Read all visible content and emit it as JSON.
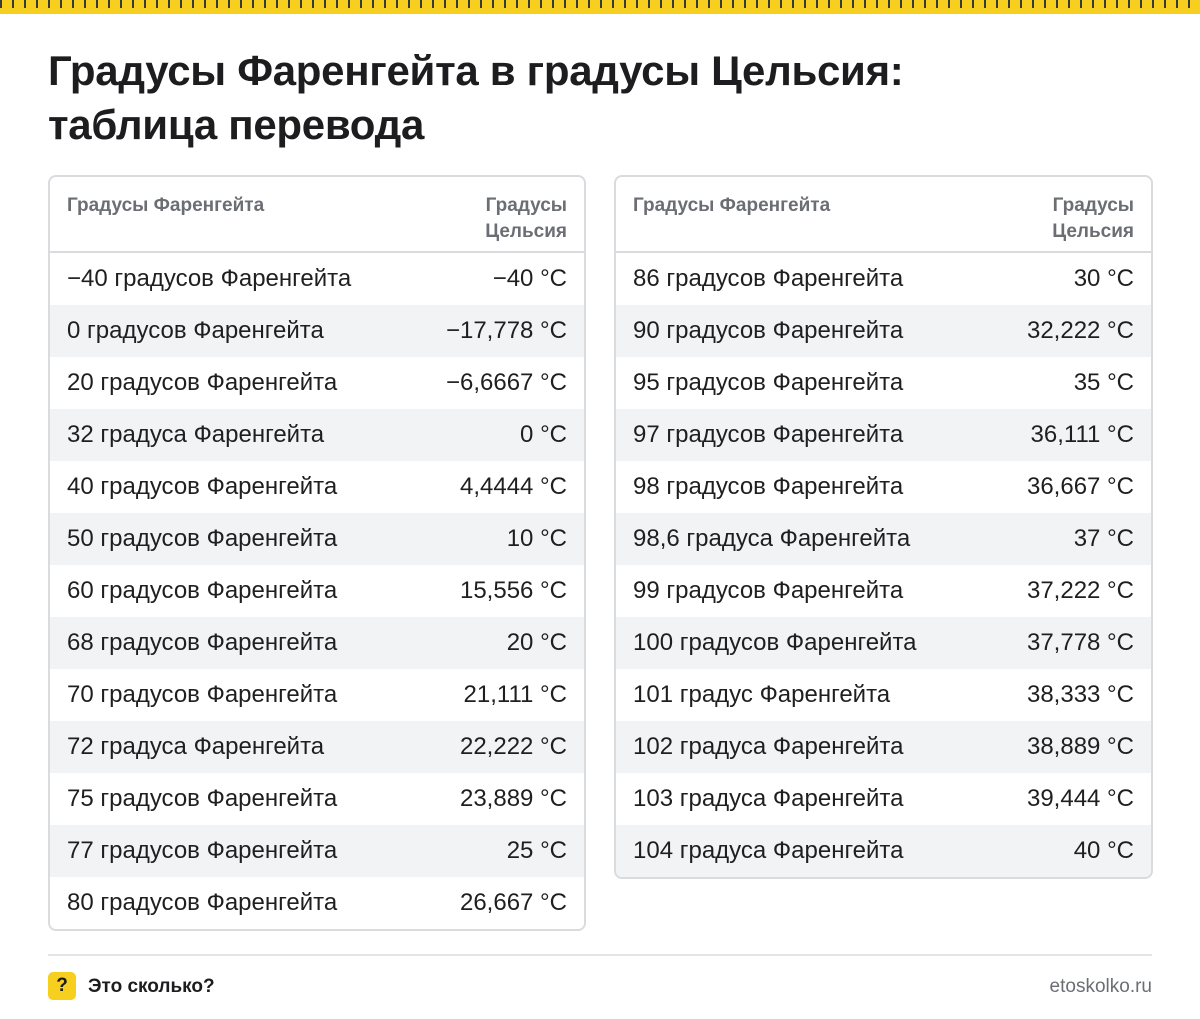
{
  "title": {
    "line1": "Градусы Фаренгейта в градусы Цельсия:",
    "line2": "таблица перевода"
  },
  "colors": {
    "accent": "#f7cf1e",
    "border": "#d9dbde",
    "stripe": "#f2f3f5"
  },
  "table_left": {
    "header": {
      "col1": "Градусы Фаренгейта",
      "col2_line1": "Градусы",
      "col2_line2": "Цельсия"
    },
    "rows": [
      {
        "f": "−40 градусов Фаренгейта",
        "c": "−40 °C"
      },
      {
        "f": "0 градусов Фаренгейта",
        "c": "−17,778 °C"
      },
      {
        "f": "20 градусов Фаренгейта",
        "c": "−6,6667 °C"
      },
      {
        "f": "32 градуса Фаренгейта",
        "c": "0 °C"
      },
      {
        "f": "40 градусов Фаренгейта",
        "c": "4,4444 °C"
      },
      {
        "f": "50 градусов Фаренгейта",
        "c": "10 °C"
      },
      {
        "f": "60 градусов Фаренгейта",
        "c": "15,556 °C"
      },
      {
        "f": "68 градусов Фаренгейта",
        "c": "20 °C"
      },
      {
        "f": "70 градусов Фаренгейта",
        "c": "21,111 °C"
      },
      {
        "f": "72 градуса Фаренгейта",
        "c": "22,222 °C"
      },
      {
        "f": "75 градусов Фаренгейта",
        "c": "23,889 °C"
      },
      {
        "f": "77 градусов Фаренгейта",
        "c": "25 °C"
      },
      {
        "f": "80 градусов Фаренгейта",
        "c": "26,667 °C"
      }
    ]
  },
  "table_right": {
    "header": {
      "col1": "Градусы Фаренгейта",
      "col2_line1": "Градусы",
      "col2_line2": "Цельсия"
    },
    "rows": [
      {
        "f": "86 градусов Фаренгейта",
        "c": "30 °C"
      },
      {
        "f": "90 градусов Фаренгейта",
        "c": "32,222 °C"
      },
      {
        "f": "95 градусов Фаренгейта",
        "c": "35 °C"
      },
      {
        "f": "97 градусов Фаренгейта",
        "c": "36,111 °C"
      },
      {
        "f": "98 градусов Фаренгейта",
        "c": "36,667 °C"
      },
      {
        "f": "98,6 градуса Фаренгейта",
        "c": "37 °C"
      },
      {
        "f": "99 градусов Фаренгейта",
        "c": "37,222 °C"
      },
      {
        "f": "100 градусов Фаренгейта",
        "c": "37,778 °C"
      },
      {
        "f": "101 градус Фаренгейта",
        "c": "38,333 °C"
      },
      {
        "f": "102 градуса Фаренгейта",
        "c": "38,889 °C"
      },
      {
        "f": "103 градуса Фаренгейта",
        "c": "39,444 °C"
      },
      {
        "f": "104 градуса Фаренгейта",
        "c": "40 °C"
      }
    ]
  },
  "footer": {
    "logo_symbol": "?",
    "brand": "Это сколько?",
    "site": "etoskolko.ru"
  }
}
